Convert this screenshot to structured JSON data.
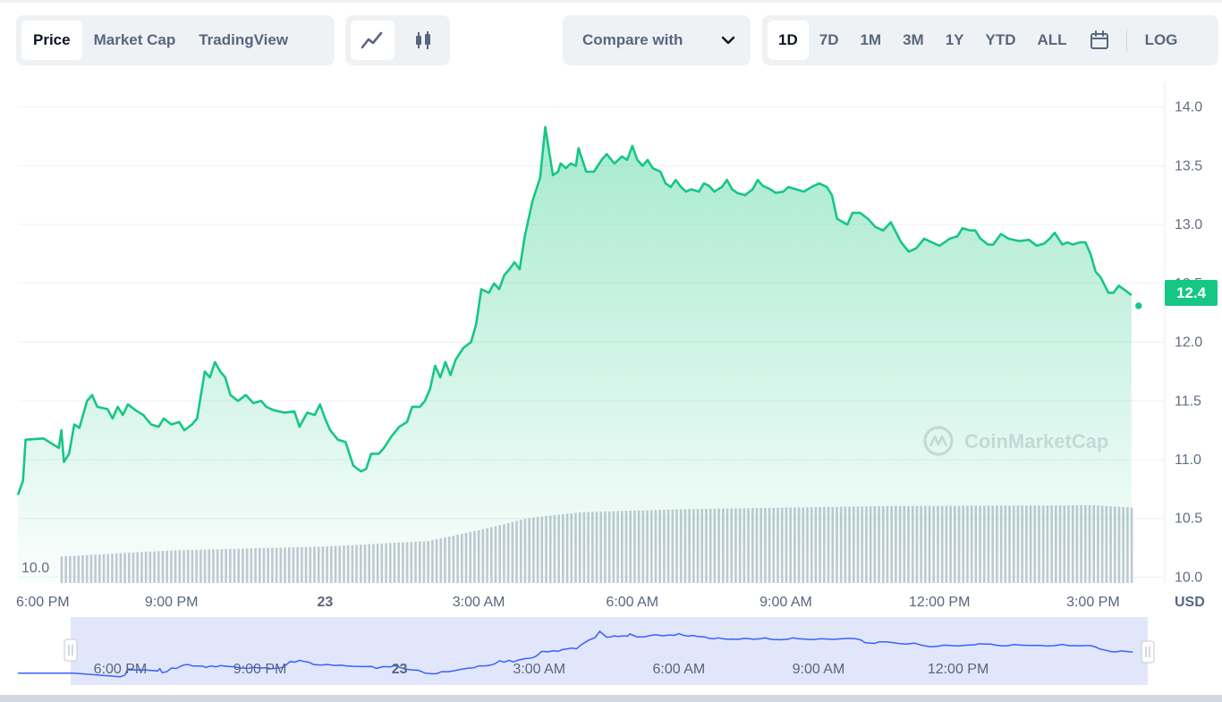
{
  "tabs": {
    "data_tabs": [
      "Price",
      "Market Cap",
      "TradingView"
    ],
    "active_data_tab": "Price",
    "chart_types": [
      "line-chart-icon",
      "candlestick-icon"
    ],
    "active_chart_type": "line-chart-icon",
    "compare_label": "Compare with",
    "compare_icon": "chevron-down-icon",
    "ranges": [
      "1D",
      "7D",
      "1M",
      "3M",
      "1Y",
      "YTD",
      "ALL"
    ],
    "active_range": "1D",
    "calendar_icon": "calendar-icon",
    "log_label": "LOG"
  },
  "watermark": "CoinMarketCap",
  "current_price_label": "12.4",
  "volume_min_label": "10.0",
  "currency_label": "USD",
  "colors": {
    "line": "#16c784",
    "area_top": "#16c784",
    "volume_bar": "#c3c9d4",
    "grid": "#eef0f4",
    "navigator_fill": "#dfe3fb",
    "navigator_line": "#3861fb",
    "badge": "#16c784"
  },
  "chart_data": {
    "type": "area",
    "title": "",
    "xlabel": "",
    "ylabel": "USD",
    "y_ticks": [
      10.0,
      10.5,
      11.0,
      11.5,
      12.0,
      12.5,
      13.0,
      13.5,
      14.0
    ],
    "ylim": [
      9.95,
      14.15
    ],
    "x_ticks": [
      "6:00 PM",
      "9:00 PM",
      "23",
      "3:00 AM",
      "6:00 AM",
      "9:00 AM",
      "12:00 PM",
      "3:00 PM"
    ],
    "x_tick_hours": [
      0,
      3,
      6,
      9,
      12,
      15,
      18,
      21
    ],
    "x_range_hours": [
      0.0,
      22.4
    ],
    "series": [
      {
        "points": [
          [
            0.0,
            10.7
          ],
          [
            0.1,
            10.82
          ],
          [
            0.15,
            11.17
          ],
          [
            0.5,
            11.18
          ],
          [
            0.8,
            11.1
          ],
          [
            0.85,
            11.25
          ],
          [
            0.9,
            10.98
          ],
          [
            1.0,
            11.05
          ],
          [
            1.1,
            11.3
          ],
          [
            1.2,
            11.27
          ],
          [
            1.35,
            11.5
          ],
          [
            1.45,
            11.55
          ],
          [
            1.55,
            11.45
          ],
          [
            1.75,
            11.43
          ],
          [
            1.85,
            11.35
          ],
          [
            1.95,
            11.45
          ],
          [
            2.05,
            11.38
          ],
          [
            2.15,
            11.47
          ],
          [
            2.3,
            11.42
          ],
          [
            2.45,
            11.38
          ],
          [
            2.6,
            11.3
          ],
          [
            2.75,
            11.28
          ],
          [
            2.85,
            11.35
          ],
          [
            3.0,
            11.3
          ],
          [
            3.15,
            11.32
          ],
          [
            3.25,
            11.25
          ],
          [
            3.4,
            11.3
          ],
          [
            3.5,
            11.35
          ],
          [
            3.65,
            11.75
          ],
          [
            3.75,
            11.7
          ],
          [
            3.85,
            11.83
          ],
          [
            3.95,
            11.75
          ],
          [
            4.05,
            11.7
          ],
          [
            4.15,
            11.55
          ],
          [
            4.3,
            11.5
          ],
          [
            4.45,
            11.55
          ],
          [
            4.6,
            11.48
          ],
          [
            4.75,
            11.5
          ],
          [
            4.85,
            11.45
          ],
          [
            5.0,
            11.42
          ],
          [
            5.2,
            11.4
          ],
          [
            5.4,
            11.41
          ],
          [
            5.5,
            11.28
          ],
          [
            5.65,
            11.4
          ],
          [
            5.8,
            11.38
          ],
          [
            5.9,
            11.47
          ],
          [
            6.0,
            11.35
          ],
          [
            6.1,
            11.25
          ],
          [
            6.25,
            11.17
          ],
          [
            6.4,
            11.15
          ],
          [
            6.55,
            10.95
          ],
          [
            6.7,
            10.9
          ],
          [
            6.8,
            10.92
          ],
          [
            6.9,
            11.05
          ],
          [
            7.05,
            11.05
          ],
          [
            7.15,
            11.1
          ],
          [
            7.3,
            11.2
          ],
          [
            7.45,
            11.28
          ],
          [
            7.6,
            11.32
          ],
          [
            7.7,
            11.45
          ],
          [
            7.85,
            11.45
          ],
          [
            7.95,
            11.5
          ],
          [
            8.05,
            11.6
          ],
          [
            8.15,
            11.8
          ],
          [
            8.25,
            11.7
          ],
          [
            8.35,
            11.83
          ],
          [
            8.45,
            11.72
          ],
          [
            8.55,
            11.85
          ],
          [
            8.7,
            11.95
          ],
          [
            8.85,
            12.0
          ],
          [
            8.95,
            12.15
          ],
          [
            9.05,
            12.45
          ],
          [
            9.2,
            12.42
          ],
          [
            9.3,
            12.5
          ],
          [
            9.4,
            12.45
          ],
          [
            9.5,
            12.57
          ],
          [
            9.6,
            12.62
          ],
          [
            9.7,
            12.68
          ],
          [
            9.8,
            12.62
          ],
          [
            9.9,
            12.9
          ],
          [
            10.05,
            13.2
          ],
          [
            10.2,
            13.4
          ],
          [
            10.3,
            13.83
          ],
          [
            10.45,
            13.42
          ],
          [
            10.55,
            13.45
          ],
          [
            10.6,
            13.52
          ],
          [
            10.7,
            13.48
          ],
          [
            10.8,
            13.52
          ],
          [
            10.9,
            13.5
          ],
          [
            10.95,
            13.65
          ],
          [
            11.1,
            13.45
          ],
          [
            11.25,
            13.45
          ],
          [
            11.4,
            13.55
          ],
          [
            11.5,
            13.6
          ],
          [
            11.65,
            13.52
          ],
          [
            11.8,
            13.58
          ],
          [
            11.9,
            13.55
          ],
          [
            12.0,
            13.67
          ],
          [
            12.1,
            13.55
          ],
          [
            12.2,
            13.5
          ],
          [
            12.3,
            13.55
          ],
          [
            12.4,
            13.48
          ],
          [
            12.55,
            13.45
          ],
          [
            12.65,
            13.35
          ],
          [
            12.75,
            13.32
          ],
          [
            12.85,
            13.38
          ],
          [
            12.95,
            13.32
          ],
          [
            13.05,
            13.28
          ],
          [
            13.15,
            13.3
          ],
          [
            13.3,
            13.28
          ],
          [
            13.4,
            13.35
          ],
          [
            13.5,
            13.33
          ],
          [
            13.6,
            13.28
          ],
          [
            13.75,
            13.32
          ],
          [
            13.85,
            13.38
          ],
          [
            13.95,
            13.3
          ],
          [
            14.05,
            13.27
          ],
          [
            14.2,
            13.25
          ],
          [
            14.35,
            13.3
          ],
          [
            14.45,
            13.38
          ],
          [
            14.55,
            13.33
          ],
          [
            14.7,
            13.3
          ],
          [
            14.8,
            13.27
          ],
          [
            14.95,
            13.28
          ],
          [
            15.05,
            13.32
          ],
          [
            15.2,
            13.3
          ],
          [
            15.35,
            13.28
          ],
          [
            15.5,
            13.32
          ],
          [
            15.65,
            13.35
          ],
          [
            15.8,
            13.32
          ],
          [
            15.9,
            13.25
          ],
          [
            16.0,
            13.05
          ],
          [
            16.2,
            13.0
          ],
          [
            16.3,
            13.1
          ],
          [
            16.45,
            13.1
          ],
          [
            16.6,
            13.05
          ],
          [
            16.75,
            12.98
          ],
          [
            16.9,
            12.95
          ],
          [
            17.05,
            13.02
          ],
          [
            17.25,
            12.85
          ],
          [
            17.4,
            12.77
          ],
          [
            17.55,
            12.8
          ],
          [
            17.7,
            12.88
          ],
          [
            17.85,
            12.85
          ],
          [
            18.0,
            12.82
          ],
          [
            18.1,
            12.85
          ],
          [
            18.2,
            12.88
          ],
          [
            18.35,
            12.9
          ],
          [
            18.45,
            12.97
          ],
          [
            18.6,
            12.95
          ],
          [
            18.7,
            12.95
          ],
          [
            18.8,
            12.88
          ],
          [
            18.95,
            12.83
          ],
          [
            19.05,
            12.83
          ],
          [
            19.2,
            12.92
          ],
          [
            19.35,
            12.88
          ],
          [
            19.55,
            12.86
          ],
          [
            19.75,
            12.87
          ],
          [
            19.9,
            12.82
          ],
          [
            20.05,
            12.84
          ],
          [
            20.15,
            12.88
          ],
          [
            20.25,
            12.93
          ],
          [
            20.4,
            12.83
          ],
          [
            20.5,
            12.85
          ],
          [
            20.6,
            12.83
          ],
          [
            20.75,
            12.85
          ],
          [
            20.85,
            12.85
          ],
          [
            20.95,
            12.75
          ],
          [
            21.05,
            12.6
          ],
          [
            21.15,
            12.55
          ],
          [
            21.3,
            12.42
          ],
          [
            21.4,
            12.42
          ],
          [
            21.5,
            12.48
          ],
          [
            21.6,
            12.45
          ],
          [
            21.75,
            12.4
          ]
        ]
      }
    ],
    "volume": {
      "first_bar_hour": 0.85,
      "count": 255,
      "relative_levels": [
        [
          0.0,
          0.31
        ],
        [
          3.0,
          0.42
        ],
        [
          6.0,
          0.47
        ],
        [
          8.0,
          0.54
        ],
        [
          9.0,
          0.68
        ],
        [
          10.0,
          0.84
        ],
        [
          11.0,
          0.91
        ],
        [
          13.0,
          0.95
        ],
        [
          15.0,
          0.97
        ],
        [
          17.0,
          0.99
        ],
        [
          21.0,
          1.0
        ],
        [
          21.75,
          0.97
        ]
      ]
    },
    "navigator_x_ticks": [
      "6:00 PM",
      "9:00 PM",
      "23",
      "3:00 AM",
      "6:00 AM",
      "9:00 AM",
      "12:00 PM"
    ],
    "grid": true,
    "legend": "none"
  }
}
